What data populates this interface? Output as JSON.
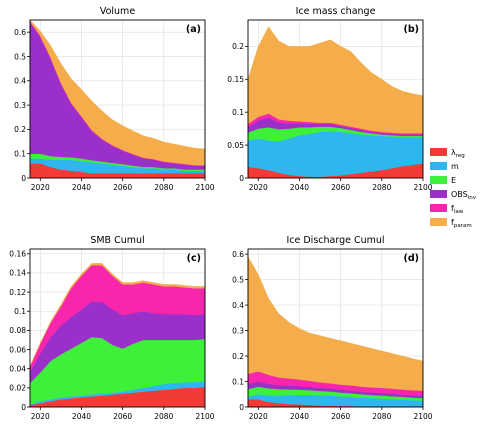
{
  "legend": {
    "items": [
      {
        "key": "lreg",
        "main": "λ",
        "sub": "reg",
        "color": "#f23b36"
      },
      {
        "key": "m",
        "main": "m",
        "sub": "",
        "color": "#2eb7ef"
      },
      {
        "key": "E",
        "main": "E",
        "sub": "",
        "color": "#3ef03a"
      },
      {
        "key": "OBS",
        "main": "OBS",
        "sub": "inv",
        "color": "#9a2fc9"
      },
      {
        "key": "flaw",
        "main": "f",
        "sub": "law",
        "color": "#f726ad"
      },
      {
        "key": "fparam",
        "main": "f",
        "sub": "param",
        "color": "#f4ad4a"
      }
    ]
  },
  "chart_data": [
    {
      "type": "area",
      "title": "Volume",
      "panel_label": "(a)",
      "xlim": [
        2015,
        2100
      ],
      "ylim": [
        0,
        0.65
      ],
      "xticks": [
        "2020",
        "2040",
        "2060",
        "2080",
        "2100"
      ],
      "yticks": [
        "0",
        "0.1",
        "0.2",
        "0.3",
        "0.4",
        "0.5",
        "0.6"
      ],
      "stacked": true,
      "x": [
        2015,
        2020,
        2025,
        2030,
        2035,
        2040,
        2045,
        2050,
        2055,
        2060,
        2065,
        2070,
        2075,
        2080,
        2085,
        2090,
        2095,
        2100
      ],
      "series": [
        {
          "key": "lreg",
          "values": [
            0.06,
            0.06,
            0.045,
            0.035,
            0.03,
            0.025,
            0.02,
            0.02,
            0.02,
            0.02,
            0.02,
            0.02,
            0.02,
            0.02,
            0.02,
            0.02,
            0.02,
            0.02
          ]
        },
        {
          "key": "m",
          "values": [
            0.02,
            0.02,
            0.03,
            0.04,
            0.045,
            0.045,
            0.045,
            0.04,
            0.035,
            0.03,
            0.025,
            0.02,
            0.02,
            0.015,
            0.015,
            0.01,
            0.01,
            0.01
          ]
        },
        {
          "key": "E",
          "values": [
            0.02,
            0.02,
            0.015,
            0.012,
            0.01,
            0.01,
            0.008,
            0.008,
            0.007,
            0.007,
            0.006,
            0.006,
            0.005,
            0.005,
            0.005,
            0.005,
            0.005,
            0.005
          ]
        },
        {
          "key": "OBS",
          "values": [
            0.54,
            0.48,
            0.4,
            0.3,
            0.22,
            0.17,
            0.12,
            0.09,
            0.07,
            0.055,
            0.045,
            0.035,
            0.03,
            0.025,
            0.02,
            0.02,
            0.015,
            0.015
          ]
        },
        {
          "key": "flaw",
          "values": [
            0.005,
            0.005,
            0.005,
            0.004,
            0.004,
            0.004,
            0.004,
            0.003,
            0.003,
            0.003,
            0.003,
            0.003,
            0.003,
            0.003,
            0.003,
            0.003,
            0.003,
            0.003
          ]
        },
        {
          "key": "fparam",
          "values": [
            0.01,
            0.02,
            0.05,
            0.08,
            0.1,
            0.11,
            0.12,
            0.115,
            0.105,
            0.1,
            0.095,
            0.09,
            0.085,
            0.08,
            0.077,
            0.073,
            0.07,
            0.067
          ]
        }
      ]
    },
    {
      "type": "area",
      "title": "Ice mass change",
      "panel_label": "(b)",
      "xlim": [
        2015,
        2100
      ],
      "ylim": [
        0,
        0.24
      ],
      "xticks": [
        "2020",
        "2040",
        "2060",
        "2080",
        "2100"
      ],
      "yticks": [
        "0",
        "0.05",
        "0.1",
        "0.15",
        "0.2"
      ],
      "stacked": true,
      "x": [
        2015,
        2020,
        2025,
        2030,
        2035,
        2040,
        2045,
        2050,
        2055,
        2060,
        2065,
        2070,
        2075,
        2080,
        2085,
        2090,
        2095,
        2100
      ],
      "series": [
        {
          "key": "lreg",
          "values": [
            0.017,
            0.015,
            0.012,
            0.008,
            0.005,
            0.003,
            0.002,
            0.002,
            0.003,
            0.004,
            0.006,
            0.008,
            0.01,
            0.012,
            0.015,
            0.018,
            0.02,
            0.022
          ]
        },
        {
          "key": "m",
          "values": [
            0.04,
            0.045,
            0.045,
            0.048,
            0.055,
            0.062,
            0.065,
            0.068,
            0.068,
            0.066,
            0.062,
            0.058,
            0.055,
            0.052,
            0.048,
            0.044,
            0.042,
            0.04
          ]
        },
        {
          "key": "E",
          "values": [
            0.012,
            0.015,
            0.02,
            0.018,
            0.015,
            0.012,
            0.01,
            0.008,
            0.007,
            0.006,
            0.005,
            0.004,
            0.003,
            0.002,
            0.002,
            0.002,
            0.002,
            0.002
          ]
        },
        {
          "key": "OBS",
          "values": [
            0.008,
            0.012,
            0.015,
            0.01,
            0.008,
            0.006,
            0.005,
            0.004,
            0.004,
            0.003,
            0.003,
            0.003,
            0.002,
            0.002,
            0.002,
            0.002,
            0.002,
            0.002
          ]
        },
        {
          "key": "flaw",
          "values": [
            0.005,
            0.006,
            0.006,
            0.005,
            0.004,
            0.003,
            0.003,
            0.002,
            0.002,
            0.002,
            0.002,
            0.002,
            0.002,
            0.002,
            0.002,
            0.002,
            0.002,
            0.002
          ]
        },
        {
          "key": "fparam",
          "values": [
            0.068,
            0.107,
            0.132,
            0.119,
            0.113,
            0.114,
            0.115,
            0.121,
            0.126,
            0.119,
            0.114,
            0.1,
            0.088,
            0.08,
            0.07,
            0.064,
            0.06,
            0.057
          ]
        }
      ]
    },
    {
      "type": "area",
      "title": "SMB Cumul",
      "panel_label": "(c)",
      "xlim": [
        2015,
        2100
      ],
      "ylim": [
        0,
        0.165
      ],
      "xticks": [
        "2020",
        "2040",
        "2060",
        "2080",
        "2100"
      ],
      "yticks": [
        "0",
        "0.02",
        "0.04",
        "0.06",
        "0.08",
        "0.1",
        "0.12",
        "0.14",
        "0.16"
      ],
      "stacked": true,
      "x": [
        2015,
        2020,
        2025,
        2030,
        2035,
        2040,
        2045,
        2050,
        2055,
        2060,
        2065,
        2070,
        2075,
        2080,
        2085,
        2090,
        2095,
        2100
      ],
      "series": [
        {
          "key": "lreg",
          "values": [
            0.002,
            0.004,
            0.006,
            0.008,
            0.009,
            0.01,
            0.011,
            0.012,
            0.013,
            0.014,
            0.015,
            0.016,
            0.017,
            0.018,
            0.019,
            0.02,
            0.02,
            0.021
          ]
        },
        {
          "key": "m",
          "values": [
            0.001,
            0.002,
            0.002,
            0.002,
            0.002,
            0.002,
            0.002,
            0.002,
            0.002,
            0.002,
            0.003,
            0.004,
            0.005,
            0.006,
            0.006,
            0.006,
            0.006,
            0.006
          ]
        },
        {
          "key": "E",
          "values": [
            0.022,
            0.03,
            0.04,
            0.045,
            0.05,
            0.055,
            0.06,
            0.058,
            0.05,
            0.045,
            0.048,
            0.05,
            0.048,
            0.046,
            0.045,
            0.044,
            0.044,
            0.044
          ]
        },
        {
          "key": "OBS",
          "values": [
            0.012,
            0.02,
            0.025,
            0.03,
            0.033,
            0.035,
            0.037,
            0.038,
            0.037,
            0.035,
            0.032,
            0.03,
            0.028,
            0.027,
            0.027,
            0.027,
            0.026,
            0.026
          ]
        },
        {
          "key": "flaw",
          "values": [
            0.005,
            0.01,
            0.015,
            0.02,
            0.03,
            0.035,
            0.038,
            0.038,
            0.035,
            0.032,
            0.03,
            0.03,
            0.03,
            0.029,
            0.029,
            0.028,
            0.028,
            0.027
          ]
        },
        {
          "key": "fparam",
          "values": [
            0.001,
            0.001,
            0.001,
            0.002,
            0.002,
            0.002,
            0.002,
            0.002,
            0.002,
            0.002,
            0.002,
            0.002,
            0.002,
            0.002,
            0.002,
            0.002,
            0.002,
            0.002
          ]
        }
      ]
    },
    {
      "type": "area",
      "title": "Ice Discharge Cumul",
      "panel_label": "(d)",
      "xlim": [
        2015,
        2100
      ],
      "ylim": [
        0,
        0.62
      ],
      "xticks": [
        "2020",
        "2040",
        "2060",
        "2080",
        "2100"
      ],
      "yticks": [
        "0",
        "0.1",
        "0.2",
        "0.3",
        "0.4",
        "0.5",
        "0.6"
      ],
      "stacked": true,
      "x": [
        2015,
        2020,
        2025,
        2030,
        2035,
        2040,
        2045,
        2050,
        2055,
        2060,
        2065,
        2070,
        2075,
        2080,
        2085,
        2090,
        2095,
        2100
      ],
      "series": [
        {
          "key": "lreg",
          "values": [
            0.03,
            0.03,
            0.02,
            0.015,
            0.012,
            0.01,
            0.008,
            0.006,
            0.005,
            0.004,
            0.004,
            0.003,
            0.003,
            0.003,
            0.003,
            0.003,
            0.003,
            0.003
          ]
        },
        {
          "key": "m",
          "values": [
            0.01,
            0.02,
            0.025,
            0.03,
            0.035,
            0.038,
            0.04,
            0.04,
            0.04,
            0.038,
            0.036,
            0.034,
            0.032,
            0.03,
            0.028,
            0.026,
            0.024,
            0.022
          ]
        },
        {
          "key": "E",
          "values": [
            0.03,
            0.03,
            0.028,
            0.025,
            0.022,
            0.02,
            0.018,
            0.017,
            0.016,
            0.015,
            0.014,
            0.013,
            0.012,
            0.012,
            0.011,
            0.011,
            0.01,
            0.01
          ]
        },
        {
          "key": "OBS",
          "values": [
            0.02,
            0.02,
            0.018,
            0.016,
            0.015,
            0.014,
            0.013,
            0.012,
            0.012,
            0.011,
            0.011,
            0.01,
            0.01,
            0.01,
            0.01,
            0.009,
            0.009,
            0.009
          ]
        },
        {
          "key": "flaw",
          "values": [
            0.04,
            0.04,
            0.035,
            0.03,
            0.028,
            0.026,
            0.024,
            0.022,
            0.02,
            0.02,
            0.02,
            0.02,
            0.02,
            0.02,
            0.02,
            0.02,
            0.02,
            0.02
          ]
        },
        {
          "key": "fparam",
          "values": [
            0.46,
            0.38,
            0.3,
            0.25,
            0.22,
            0.2,
            0.187,
            0.183,
            0.177,
            0.172,
            0.165,
            0.16,
            0.153,
            0.145,
            0.138,
            0.131,
            0.124,
            0.116
          ]
        }
      ]
    }
  ]
}
